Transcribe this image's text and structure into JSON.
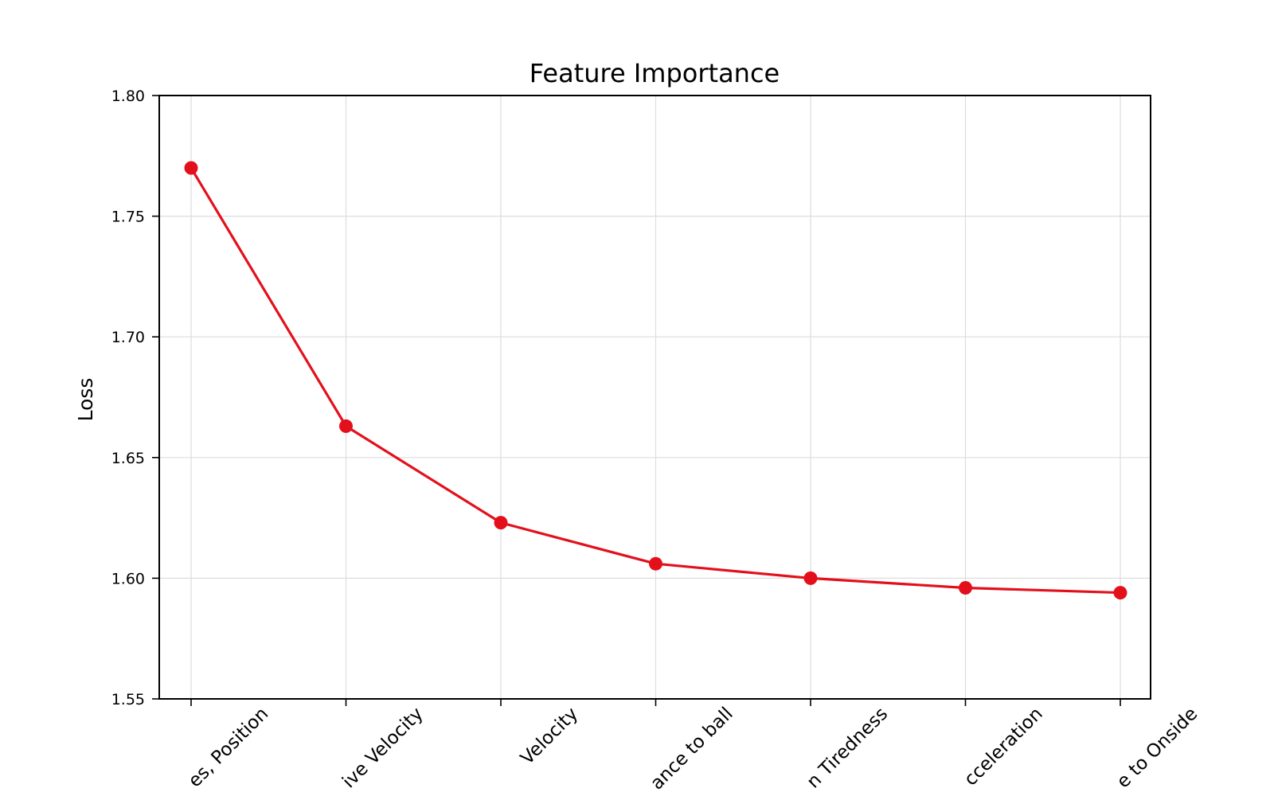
{
  "chart_data": {
    "type": "line",
    "title": "Feature Importance",
    "xlabel": "",
    "ylabel": "Loss",
    "categories": [
      "Coordinates, Position",
      "Relative Velocity",
      "Velocity",
      "Distance to ball",
      "Player Tiredness",
      "Acceleration",
      "Distance to Onside"
    ],
    "categories_visible": [
      "es, Position",
      "ive Velocity",
      "Velocity",
      "ance to ball",
      "n Tiredness",
      "cceleration",
      "e to Onside"
    ],
    "series": [
      {
        "values": [
          1.77,
          1.663,
          1.623,
          1.606,
          1.6,
          1.596,
          1.594
        ],
        "color": "#e3101c"
      }
    ],
    "ylim": [
      1.55,
      1.8
    ],
    "yticks": [
      1.55,
      1.6,
      1.65,
      1.7,
      1.75,
      1.8
    ],
    "ytick_labels": [
      "1.55",
      "1.60",
      "1.65",
      "1.70",
      "1.75",
      "1.80"
    ],
    "grid": true,
    "legend": "none",
    "x_tick_rotation_deg": -45
  }
}
